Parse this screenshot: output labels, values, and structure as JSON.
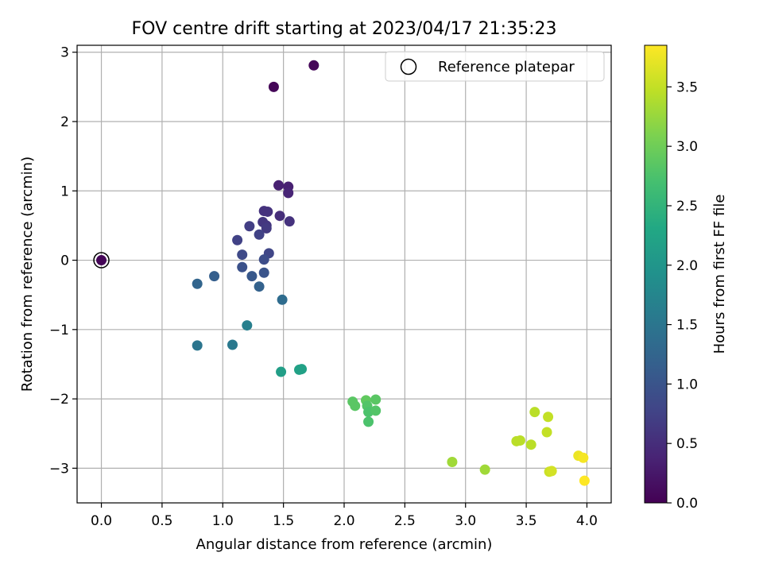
{
  "chart_data": {
    "type": "scatter",
    "title": "FOV centre drift starting at 2023/04/17 21:35:23",
    "xlabel": "Angular distance from reference (arcmin)",
    "ylabel": "Rotation from reference (arcmin)",
    "xlim": [
      -0.2,
      4.2
    ],
    "ylim": [
      -3.5,
      3.1
    ],
    "xticks": [
      0.0,
      0.5,
      1.0,
      1.5,
      2.0,
      2.5,
      3.0,
      3.5,
      4.0
    ],
    "xtick_labels": [
      "0.0",
      "0.5",
      "1.0",
      "1.5",
      "2.0",
      "2.5",
      "3.0",
      "3.5",
      "4.0"
    ],
    "yticks": [
      -3,
      -2,
      -1,
      0,
      1,
      2,
      3
    ],
    "ytick_labels": [
      "−3",
      "−2",
      "−1",
      "0",
      "1",
      "2",
      "3"
    ],
    "grid": true,
    "legend": {
      "location": "upper right",
      "entries": [
        "Reference platepar"
      ]
    },
    "reference_point": {
      "x": 0.0,
      "y": 0.0
    },
    "colormap": "viridis",
    "colorbar": {
      "label": "Hours from first FF file",
      "range": [
        0.0,
        3.85
      ],
      "ticks": [
        0.0,
        0.5,
        1.0,
        1.5,
        2.0,
        2.5,
        3.0,
        3.5
      ],
      "tick_labels": [
        "0.0",
        "0.5",
        "1.0",
        "1.5",
        "2.0",
        "2.5",
        "3.0",
        "3.5"
      ]
    },
    "points": [
      {
        "x": 0.0,
        "y": 0.0,
        "c": 0.05
      },
      {
        "x": 1.42,
        "y": 2.5,
        "c": 0.05
      },
      {
        "x": 1.75,
        "y": 2.81,
        "c": 0.05
      },
      {
        "x": 1.46,
        "y": 1.08,
        "c": 0.35
      },
      {
        "x": 1.54,
        "y": 1.06,
        "c": 0.35
      },
      {
        "x": 1.54,
        "y": 0.97,
        "c": 0.4
      },
      {
        "x": 1.34,
        "y": 0.71,
        "c": 0.55
      },
      {
        "x": 1.37,
        "y": 0.7,
        "c": 0.55
      },
      {
        "x": 1.47,
        "y": 0.64,
        "c": 0.5
      },
      {
        "x": 1.55,
        "y": 0.56,
        "c": 0.55
      },
      {
        "x": 1.33,
        "y": 0.55,
        "c": 0.6
      },
      {
        "x": 1.36,
        "y": 0.5,
        "c": 0.6
      },
      {
        "x": 1.36,
        "y": 0.46,
        "c": 0.65
      },
      {
        "x": 1.22,
        "y": 0.49,
        "c": 0.7
      },
      {
        "x": 1.3,
        "y": 0.37,
        "c": 0.75
      },
      {
        "x": 1.12,
        "y": 0.29,
        "c": 0.75
      },
      {
        "x": 1.38,
        "y": 0.1,
        "c": 0.8
      },
      {
        "x": 1.16,
        "y": 0.08,
        "c": 0.85
      },
      {
        "x": 1.34,
        "y": 0.01,
        "c": 0.9
      },
      {
        "x": 1.16,
        "y": -0.1,
        "c": 0.95
      },
      {
        "x": 1.34,
        "y": -0.18,
        "c": 1.0
      },
      {
        "x": 1.24,
        "y": -0.23,
        "c": 1.05
      },
      {
        "x": 0.93,
        "y": -0.23,
        "c": 1.15
      },
      {
        "x": 0.79,
        "y": -0.34,
        "c": 1.25
      },
      {
        "x": 1.3,
        "y": -0.38,
        "c": 1.2
      },
      {
        "x": 1.49,
        "y": -0.57,
        "c": 1.35
      },
      {
        "x": 1.2,
        "y": -0.94,
        "c": 1.65
      },
      {
        "x": 0.79,
        "y": -1.23,
        "c": 1.5
      },
      {
        "x": 1.08,
        "y": -1.22,
        "c": 1.55
      },
      {
        "x": 1.48,
        "y": -1.61,
        "c": 2.15
      },
      {
        "x": 1.63,
        "y": -1.58,
        "c": 2.2
      },
      {
        "x": 1.65,
        "y": -1.57,
        "c": 2.2
      },
      {
        "x": 2.07,
        "y": -2.04,
        "c": 2.85
      },
      {
        "x": 2.09,
        "y": -2.1,
        "c": 2.85
      },
      {
        "x": 2.18,
        "y": -2.02,
        "c": 2.9
      },
      {
        "x": 2.26,
        "y": -2.01,
        "c": 2.85
      },
      {
        "x": 2.19,
        "y": -2.1,
        "c": 2.8
      },
      {
        "x": 2.2,
        "y": -2.19,
        "c": 2.75
      },
      {
        "x": 2.26,
        "y": -2.17,
        "c": 2.8
      },
      {
        "x": 2.2,
        "y": -2.33,
        "c": 2.75
      },
      {
        "x": 2.89,
        "y": -2.91,
        "c": 3.3
      },
      {
        "x": 3.16,
        "y": -3.02,
        "c": 3.3
      },
      {
        "x": 3.42,
        "y": -2.61,
        "c": 3.45
      },
      {
        "x": 3.45,
        "y": -2.6,
        "c": 3.45
      },
      {
        "x": 3.54,
        "y": -2.66,
        "c": 3.45
      },
      {
        "x": 3.57,
        "y": -2.19,
        "c": 3.45
      },
      {
        "x": 3.68,
        "y": -2.26,
        "c": 3.5
      },
      {
        "x": 3.67,
        "y": -2.48,
        "c": 3.5
      },
      {
        "x": 3.69,
        "y": -3.05,
        "c": 3.55
      },
      {
        "x": 3.71,
        "y": -3.04,
        "c": 3.6
      },
      {
        "x": 3.93,
        "y": -2.82,
        "c": 3.75
      },
      {
        "x": 3.97,
        "y": -2.85,
        "c": 3.8
      },
      {
        "x": 3.98,
        "y": -3.18,
        "c": 3.85
      }
    ]
  }
}
